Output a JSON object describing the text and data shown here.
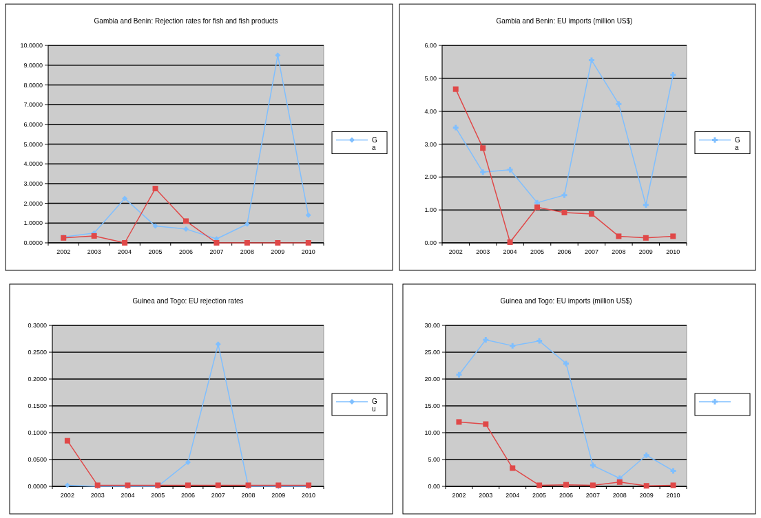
{
  "chart_data": [
    {
      "type": "line",
      "title": "Gambia and Benin: Rejection rates for fish and fish products",
      "categories": [
        "2002",
        "2003",
        "2004",
        "2005",
        "2006",
        "2007",
        "2008",
        "2009",
        "2010"
      ],
      "series": [
        {
          "name": "G a",
          "color": "#7fbfff",
          "marker": "diamond",
          "values": [
            0.3,
            0.5,
            2.25,
            0.85,
            0.7,
            0.2,
            0.95,
            9.5,
            1.4
          ]
        },
        {
          "color": "#e04848",
          "marker": "square",
          "values": [
            0.25,
            0.35,
            0,
            2.75,
            1.1,
            0,
            0,
            0,
            0
          ]
        }
      ],
      "ylim": [
        0,
        10
      ],
      "yticks": [
        {
          "value": 0,
          "label": "0.0000"
        },
        {
          "value": 1,
          "label": "1.0000"
        },
        {
          "value": 2,
          "label": "2.0000"
        },
        {
          "value": 3,
          "label": "3.0000"
        },
        {
          "value": 4,
          "label": "4.0000"
        },
        {
          "value": 5,
          "label": "5.0000"
        },
        {
          "value": 6,
          "label": "6.0000"
        },
        {
          "value": 7,
          "label": "7.0000"
        },
        {
          "value": 8,
          "label": "8.0000"
        },
        {
          "value": 9,
          "label": "9.0000"
        },
        {
          "value": 10,
          "label": "10.0000"
        }
      ],
      "grid": "y",
      "legend": "right"
    },
    {
      "type": "line",
      "title": "Gambia and Benin: EU imports (million US$)",
      "categories": [
        "2002",
        "2003",
        "2004",
        "2005",
        "2006",
        "2007",
        "2008",
        "2009",
        "2010"
      ],
      "series": [
        {
          "name": "G a",
          "color": "#7fbfff",
          "marker": "cross",
          "values": [
            3.5,
            2.15,
            2.22,
            1.22,
            1.45,
            5.55,
            4.22,
            1.15,
            5.1
          ]
        },
        {
          "color": "#e04848",
          "marker": "square",
          "values": [
            4.67,
            2.88,
            0.02,
            1.08,
            0.92,
            0.88,
            0.2,
            0.15,
            0.2
          ]
        }
      ],
      "ylim": [
        0,
        6
      ],
      "yticks": [
        {
          "value": 0,
          "label": "0.00"
        },
        {
          "value": 1,
          "label": "1.00"
        },
        {
          "value": 2,
          "label": "2.00"
        },
        {
          "value": 3,
          "label": "3.00"
        },
        {
          "value": 4,
          "label": "4.00"
        },
        {
          "value": 5,
          "label": "5.00"
        },
        {
          "value": 6,
          "label": "6.00"
        }
      ],
      "grid": "y",
      "legend": "right"
    },
    {
      "type": "line",
      "title": "Guinea and Togo: EU rejection rates",
      "categories": [
        "2002",
        "2003",
        "2004",
        "2005",
        "2006",
        "2007",
        "2008",
        "2009",
        "2010"
      ],
      "series": [
        {
          "name": "G u",
          "color": "#7fbfff",
          "marker": "diamond",
          "values": [
            0.002,
            0,
            0,
            0,
            0.045,
            0.265,
            0,
            0,
            0
          ]
        },
        {
          "color": "#e04848",
          "marker": "square",
          "values": [
            0.085,
            0.002,
            0.002,
            0.002,
            0.002,
            0.002,
            0.002,
            0.002,
            0.002
          ]
        }
      ],
      "ylim": [
        0,
        0.3
      ],
      "yticks": [
        {
          "value": 0,
          "label": "0.0000"
        },
        {
          "value": 0.05,
          "label": "0.0500"
        },
        {
          "value": 0.1,
          "label": "0.1000"
        },
        {
          "value": 0.15,
          "label": "0.1500"
        },
        {
          "value": 0.2,
          "label": "0.2000"
        },
        {
          "value": 0.25,
          "label": "0.2500"
        },
        {
          "value": 0.3,
          "label": "0.3000"
        }
      ],
      "grid": "y",
      "legend": "right"
    },
    {
      "type": "line",
      "title": "Guinea and Togo: EU imports (million US$)",
      "categories": [
        "2002",
        "2003",
        "2004",
        "2005",
        "2006",
        "2007",
        "2008",
        "2009",
        "2010"
      ],
      "series": [
        {
          "color": "#7fbfff",
          "marker": "cross",
          "values": [
            20.8,
            27.3,
            26.2,
            27.1,
            22.9,
            3.9,
            1.5,
            5.8,
            2.9
          ]
        },
        {
          "color": "#e04848",
          "marker": "square",
          "values": [
            12.0,
            11.6,
            3.4,
            0.2,
            0.3,
            0.2,
            0.8,
            0.1,
            0.2
          ]
        }
      ],
      "ylim": [
        0,
        30
      ],
      "yticks": [
        {
          "value": 0,
          "label": "0.00"
        },
        {
          "value": 5,
          "label": "5.00"
        },
        {
          "value": 10,
          "label": "10.00"
        },
        {
          "value": 15,
          "label": "15.00"
        },
        {
          "value": 20,
          "label": "20.00"
        },
        {
          "value": 25,
          "label": "25.00"
        },
        {
          "value": 30,
          "label": "30.00"
        }
      ],
      "grid": "y",
      "legend": "right"
    }
  ]
}
